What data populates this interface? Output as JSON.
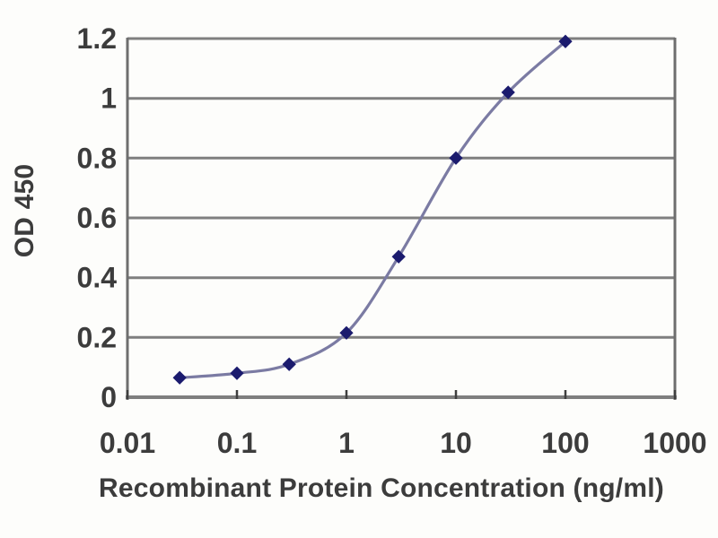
{
  "chart_data": {
    "type": "line",
    "title": "",
    "xlabel": "Recombinant Protein Concentration (ng/ml)",
    "ylabel": "OD 450",
    "x_scale": "log",
    "xlim": [
      0.01,
      1000
    ],
    "ylim": [
      0,
      1.2
    ],
    "x_ticks": [
      0.01,
      0.1,
      1,
      10,
      100,
      1000
    ],
    "x_tick_labels": [
      "0.01",
      "0.1",
      "1",
      "10",
      "100",
      "1000"
    ],
    "y_ticks": [
      0,
      0.2,
      0.4,
      0.6,
      0.8,
      1,
      1.2
    ],
    "y_tick_labels": [
      "0",
      "0.2",
      "0.4",
      "0.6",
      "0.8",
      "1",
      "1.2"
    ],
    "grid": "horizontal",
    "legend": "none",
    "series": [
      {
        "name": "OD 450",
        "marker": "diamond",
        "line_style": "smooth",
        "x": [
          0.03,
          0.1,
          0.3,
          1,
          3,
          10,
          30,
          100
        ],
        "y": [
          0.065,
          0.08,
          0.11,
          0.215,
          0.47,
          0.8,
          1.02,
          1.19
        ]
      }
    ]
  },
  "colors": {
    "background": "#fdfdfb",
    "gridline": "#7f7f7f",
    "axis_frame": "#6e6e6e",
    "tick_mark": "#3f3f3f",
    "text": "#3c3c3c",
    "series_line": "#7b7ba3",
    "series_marker": "#1b1b6e"
  }
}
